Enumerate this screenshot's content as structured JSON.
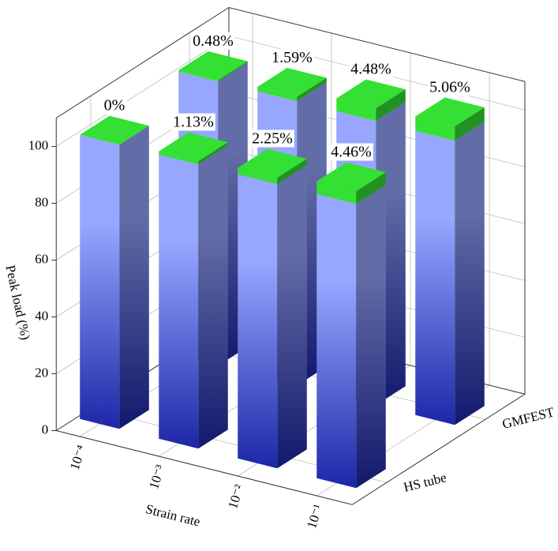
{
  "chart_data": {
    "type": "bar3d",
    "xlabel": "Strain rate",
    "zlabel": "Peak load (%)",
    "categories": [
      "10⁻⁴",
      "10⁻³",
      "10⁻²",
      "10⁻¹"
    ],
    "zlim": [
      0,
      110
    ],
    "zticks": [
      0,
      20,
      40,
      60,
      80,
      100
    ],
    "colors": {
      "base_top": "#97a6ff",
      "base_bottom": "#1c27a8",
      "increase": "#33e033"
    },
    "rows": [
      {
        "name": "HS tube",
        "base": [
          100,
          100,
          100,
          100
        ],
        "values": [
          0,
          1.13,
          2.25,
          4.46
        ],
        "value_labels": [
          "0%",
          "1.13%",
          "2.25%",
          "4.46%"
        ]
      },
      {
        "name": "GMFEST",
        "base": [
          100,
          100,
          100,
          100
        ],
        "values": [
          0.48,
          1.59,
          4.48,
          5.06
        ],
        "value_labels": [
          "0.48%",
          "1.59%",
          "4.48%",
          "5.06%"
        ]
      }
    ]
  }
}
